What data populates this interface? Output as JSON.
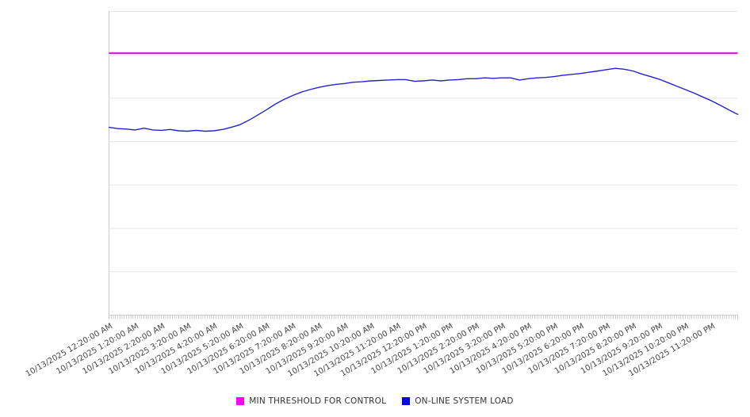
{
  "chart_data": {
    "type": "line",
    "title": "",
    "x_axis": {
      "tick_labels": [
        "10/13/2025 12:20:00 AM",
        "10/13/2025 1:20:00 AM",
        "10/13/2025 2:20:00 AM",
        "10/13/2025 3:20:00 AM",
        "10/13/2025 4:20:00 AM",
        "10/13/2025 5:20:00 AM",
        "10/13/2025 6:20:00 AM",
        "10/13/2025 7:20:00 AM",
        "10/13/2025 8:20:00 AM",
        "10/13/2025 9:20:00 AM",
        "10/13/2025 10:20:00 AM",
        "10/13/2025 11:20:00 AM",
        "10/13/2025 12:20:00 PM",
        "10/13/2025 1:20:00 PM",
        "10/13/2025 2:20:00 PM",
        "10/13/2025 3:20:00 PM",
        "10/13/2025 4:20:00 PM",
        "10/13/2025 5:20:00 PM",
        "10/13/2025 6:20:00 PM",
        "10/13/2025 7:20:00 PM",
        "10/13/2025 8:20:00 PM",
        "10/13/2025 9:20:00 PM",
        "10/13/2025 10:20:00 PM",
        "10/13/2025 11:20:00 PM"
      ],
      "start_minutes": 20,
      "end_minutes": 1460,
      "major_tick_interval_minutes": 60,
      "minor_tick_interval_minutes": 5,
      "label_rotation_deg": -30
    },
    "y_axis": {
      "labels_shown": false,
      "range": [
        0,
        7
      ],
      "gridline_step": 1
    },
    "series": [
      {
        "name": "MIN THRESHOLD FOR CONTROL",
        "type": "threshold",
        "value": 6.04,
        "legend_color": "#ff00ff",
        "line_color": "#cc00cc"
      },
      {
        "name": "ON-LINE SYSTEM LOAD",
        "type": "line",
        "t_start_min": 20,
        "t_step_min": 20,
        "legend_color": "#0000ff",
        "line_color": "#2323cc",
        "values": [
          4.33,
          4.3,
          4.29,
          4.27,
          4.31,
          4.27,
          4.26,
          4.28,
          4.25,
          4.24,
          4.26,
          4.24,
          4.25,
          4.28,
          4.33,
          4.39,
          4.49,
          4.61,
          4.73,
          4.86,
          4.97,
          5.06,
          5.14,
          5.2,
          5.25,
          5.29,
          5.32,
          5.34,
          5.37,
          5.38,
          5.4,
          5.41,
          5.42,
          5.43,
          5.43,
          5.39,
          5.4,
          5.42,
          5.4,
          5.42,
          5.43,
          5.45,
          5.45,
          5.47,
          5.46,
          5.47,
          5.47,
          5.42,
          5.45,
          5.47,
          5.48,
          5.5,
          5.53,
          5.55,
          5.57,
          5.6,
          5.63,
          5.66,
          5.69,
          5.67,
          5.63,
          5.56,
          5.5,
          5.44,
          5.36,
          5.28,
          5.2,
          5.12,
          5.03,
          4.94,
          4.84,
          4.73,
          4.63
        ]
      }
    ],
    "legend": {
      "position": "bottom",
      "items": [
        {
          "label": "MIN THRESHOLD FOR CONTROL",
          "color": "#ff00ff"
        },
        {
          "label": "ON-LINE SYSTEM LOAD",
          "color": "#0000ff"
        }
      ]
    },
    "colors": {
      "background": "#ffffff",
      "gridline": "#e8e8e8",
      "axis": "#cccccc",
      "tick": "#bbbbbb",
      "tick_label": "#444444",
      "legend_text": "#333333"
    }
  }
}
